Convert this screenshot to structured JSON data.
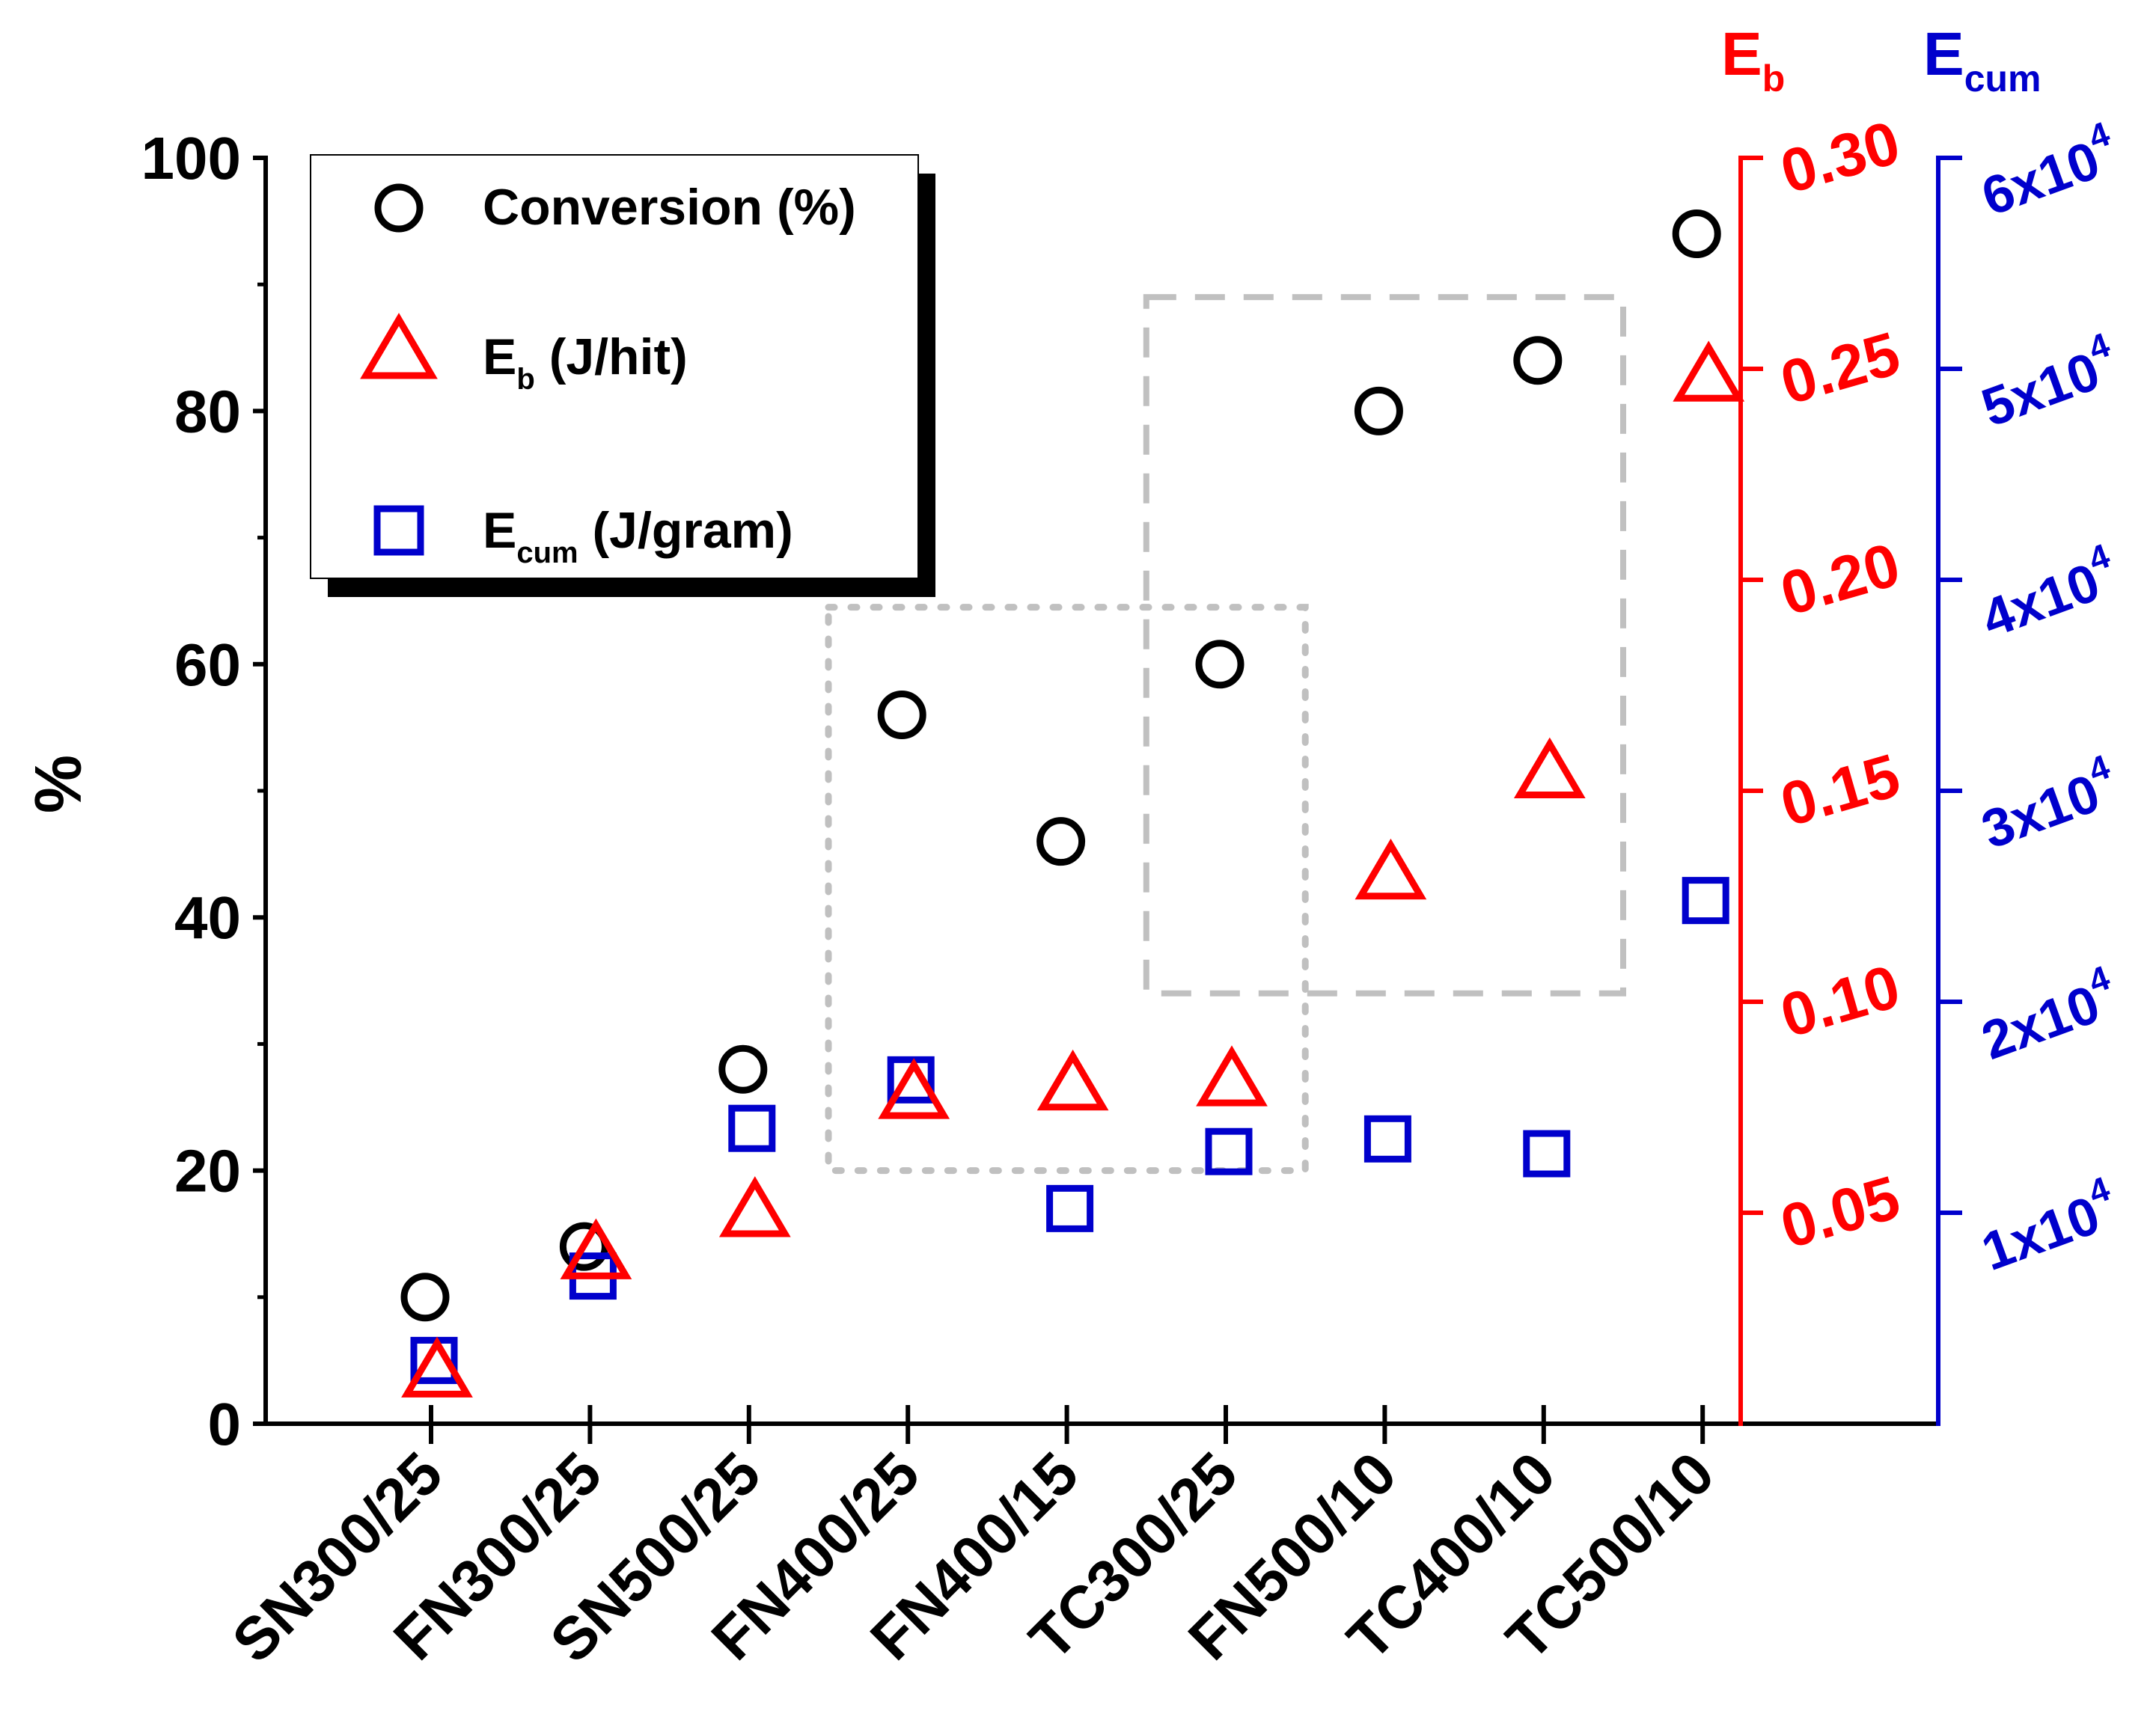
{
  "chart_data": {
    "type": "scatter",
    "categories": [
      "SN300/25",
      "FN300/25",
      "SN500/25",
      "FN400/25",
      "FN400/15",
      "TC300/25",
      "FN500/10",
      "TC400/10",
      "TC500/10"
    ],
    "y_axis": {
      "label": "%",
      "ylim": [
        0,
        100
      ],
      "ticks": [
        "0",
        "20",
        "40",
        "60",
        "80",
        "100"
      ],
      "tick_values": [
        0,
        20,
        40,
        60,
        80,
        100
      ]
    },
    "eb_axis": {
      "label_main": "E",
      "label_sub": "b",
      "ylim": [
        0,
        0.3
      ],
      "ticks": [
        "0.05",
        "0.10",
        "0.15",
        "0.20",
        "0.25",
        "0.30"
      ],
      "tick_values": [
        0.05,
        0.1,
        0.15,
        0.2,
        0.25,
        0.3
      ],
      "color": "#ff0000"
    },
    "ecum_axis": {
      "label_main": "E",
      "label_sub": "cum",
      "ylim": [
        0,
        60000
      ],
      "tick_mantissa": [
        "1x10",
        "2x10",
        "3x10",
        "4x10",
        "5x10",
        "6x10"
      ],
      "tick_exponent": "4",
      "tick_values": [
        10000,
        20000,
        30000,
        40000,
        50000,
        60000
      ],
      "color": "#0000cc"
    },
    "series": [
      {
        "name": "Conversion (%)",
        "axis": "left",
        "marker": "circle",
        "color": "#000000",
        "values": [
          10,
          14,
          28,
          56,
          46,
          60,
          80,
          84,
          94
        ]
      },
      {
        "name": "Eb (J/hit)",
        "axis": "eb",
        "marker": "triangle",
        "color": "#ff0000",
        "values": [
          0.012,
          0.04,
          0.05,
          0.078,
          0.08,
          0.081,
          0.13,
          0.154,
          0.248
        ]
      },
      {
        "name": "Ecum (J/gram)",
        "axis": "ecum",
        "marker": "square",
        "color": "#0000cc",
        "values": [
          3000,
          7000,
          14000,
          16300,
          10200,
          12900,
          13500,
          12800,
          24800
        ]
      }
    ],
    "legend": {
      "position": "top-left",
      "entries": [
        {
          "main": "Conversion (%)",
          "sub": "",
          "rest": ""
        },
        {
          "main": "E",
          "sub": "b",
          "rest": " (J/hit)"
        },
        {
          "main": "E",
          "sub": "cum",
          "rest": " (J/gram)"
        }
      ]
    },
    "annotations": [
      {
        "kind": "dotted-box",
        "from_category": "FN400/25",
        "to_category": "TC300/25",
        "ylim": [
          20,
          64.5
        ]
      },
      {
        "kind": "dashed-box",
        "from_category": "TC300/25",
        "to_category": "TC400/10",
        "ylim": [
          34,
          89
        ]
      }
    ]
  }
}
